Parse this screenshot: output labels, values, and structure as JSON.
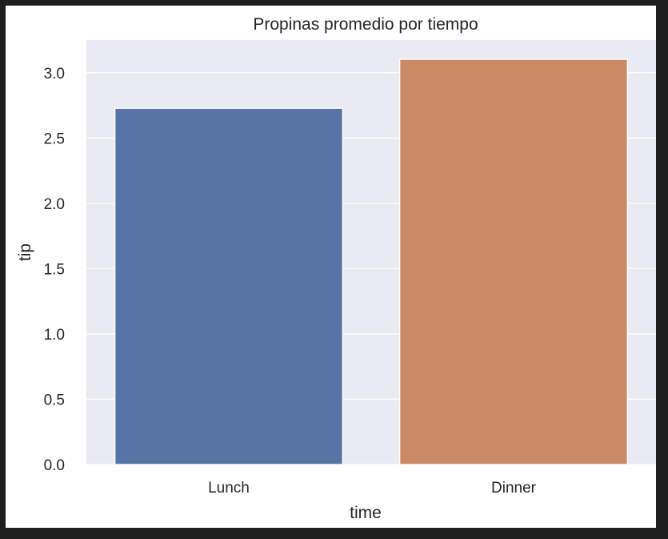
{
  "chart_data": {
    "type": "bar",
    "title": "Propinas promedio por tiempo",
    "xlabel": "time",
    "ylabel": "tip",
    "categories": [
      "Lunch",
      "Dinner"
    ],
    "values": [
      2.728,
      3.103
    ],
    "ylim": [
      0,
      3.25
    ],
    "yticks": [
      0.0,
      0.5,
      1.0,
      1.5,
      2.0,
      2.5,
      3.0
    ],
    "ytick_labels": [
      "0.0",
      "0.5",
      "1.0",
      "1.5",
      "2.0",
      "2.5",
      "3.0"
    ],
    "colors": [
      "#5874a6",
      "#cb8964"
    ],
    "grid": true,
    "background": "#eaeaf2"
  }
}
